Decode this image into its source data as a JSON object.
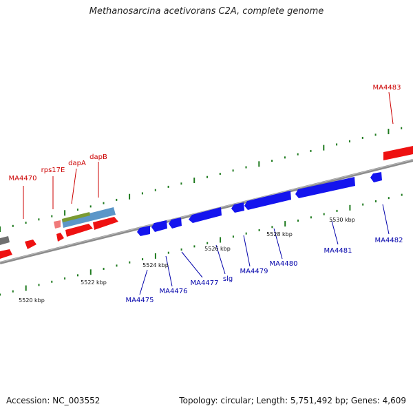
{
  "header": {
    "title": "Methanosarcina acetivorans C2A, complete genome"
  },
  "footer": {
    "accession": "Accession: NC_003552",
    "topology": "Topology: circular; Length: 5,751,492 bp; Genes: 4,609"
  },
  "colors": {
    "forward_gene": "#ee1111",
    "forward_gene_light": "#f07a7a",
    "reverse_gene": "#1414ee",
    "forward_label": "#cc0000",
    "reverse_label": "#0000aa",
    "tick": "#1e7a1e",
    "backbone": "#8c8c8c",
    "other_gene": "#707070",
    "region_blue": "#5b96c8",
    "region_green": "#7a9a32"
  },
  "forward_genes": [
    {
      "name": "",
      "label": ""
    },
    {
      "name": "",
      "label": ""
    },
    {
      "name": "",
      "label": ""
    },
    {
      "name": "MA4470",
      "label": "MA4470"
    },
    {
      "name": "rps17E",
      "label": "rps17E"
    },
    {
      "name": "dapA",
      "label": "dapA"
    },
    {
      "name": "dapB",
      "label": "dapB"
    },
    {
      "name": "MA4483",
      "label": "MA4483"
    }
  ],
  "reverse_genes": [
    {
      "name": "MA4475",
      "label": "MA4475"
    },
    {
      "name": "MA4476",
      "label": "MA4476"
    },
    {
      "name": "MA4477",
      "label": "MA4477"
    },
    {
      "name": "slg",
      "label": "slg"
    },
    {
      "name": "",
      "label": ""
    },
    {
      "name": "MA4479",
      "label": "MA4479"
    },
    {
      "name": "MA4480",
      "label": "MA4480"
    },
    {
      "name": "MA4481",
      "label": "MA4481"
    },
    {
      "name": "MA4482",
      "label": "MA4482"
    }
  ],
  "ticks": [
    "5520 kbp",
    "5522 kbp",
    "5524 kbp",
    "5526 kbp",
    "5528 kbp",
    "5530 kbp"
  ]
}
